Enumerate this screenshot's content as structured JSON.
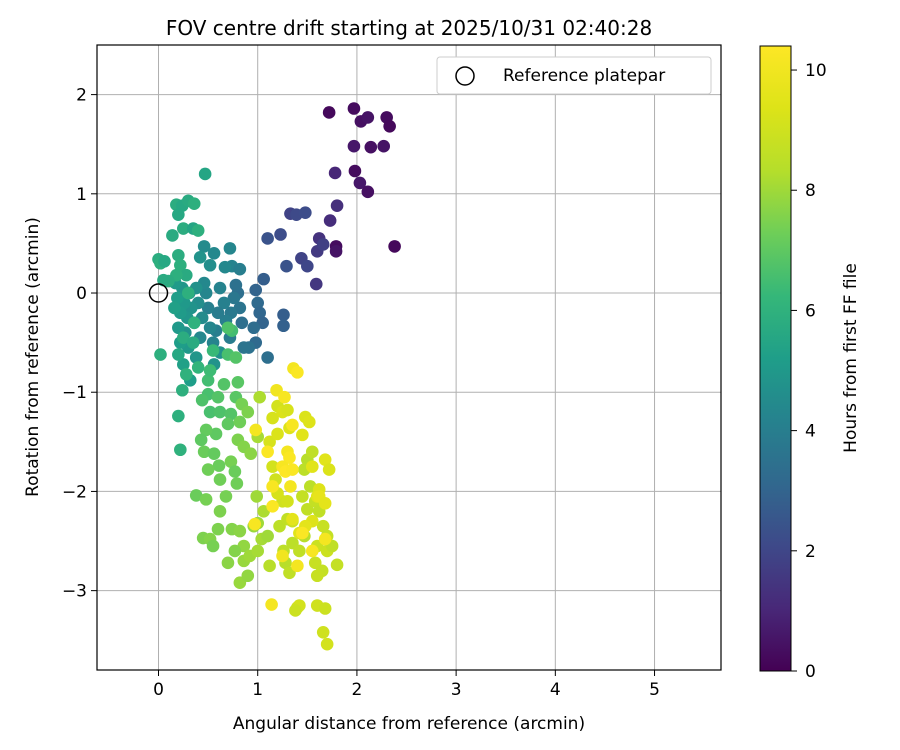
{
  "chart_data": {
    "type": "scatter",
    "title": "FOV centre drift starting at 2025/10/31 02:40:28",
    "xlabel": "Angular distance from reference (arcmin)",
    "ylabel": "Rotation from reference (arcmin)",
    "xlim": [
      -0.62,
      5.67
    ],
    "ylim": [
      -3.8,
      2.5
    ],
    "xticks": [
      0,
      1,
      2,
      3,
      4,
      5
    ],
    "yticks": [
      -3,
      -2,
      -1,
      0,
      1,
      2
    ],
    "grid": true,
    "legend": {
      "placement": "top-right",
      "entries": [
        "Reference platepar"
      ]
    },
    "reference_point": {
      "x": 0,
      "y": 0,
      "label": "Reference platepar"
    },
    "colorbar": {
      "label": "Hours from first FF file",
      "range": [
        0,
        10.4
      ],
      "ticks": [
        0,
        2,
        4,
        6,
        8,
        10
      ],
      "colormap": "viridis"
    },
    "points": [
      [
        1.72,
        1.82,
        0.2
      ],
      [
        1.97,
        1.86,
        0.3
      ],
      [
        2.04,
        1.73,
        0.4
      ],
      [
        2.11,
        1.77,
        0.5
      ],
      [
        2.3,
        1.77,
        0.3
      ],
      [
        2.33,
        1.68,
        0.2
      ],
      [
        1.97,
        1.48,
        0.6
      ],
      [
        2.14,
        1.47,
        0.4
      ],
      [
        2.27,
        1.48,
        0.5
      ],
      [
        1.98,
        1.23,
        0.3
      ],
      [
        2.03,
        1.11,
        0.6
      ],
      [
        2.11,
        1.02,
        0.4
      ],
      [
        2.38,
        0.47,
        0.2
      ],
      [
        1.79,
        0.47,
        0.3
      ],
      [
        1.79,
        0.42,
        0.5
      ],
      [
        1.78,
        1.21,
        1.0
      ],
      [
        1.73,
        0.73,
        1.2
      ],
      [
        1.8,
        0.88,
        1.3
      ],
      [
        1.62,
        0.55,
        1.4
      ],
      [
        1.59,
        0.09,
        1.5
      ],
      [
        1.6,
        0.42,
        1.6
      ],
      [
        1.66,
        0.49,
        1.8
      ],
      [
        1.44,
        0.35,
        1.9
      ],
      [
        1.5,
        0.27,
        2.0
      ],
      [
        1.33,
        0.8,
        1.9
      ],
      [
        1.39,
        0.79,
        2.1
      ],
      [
        1.48,
        0.81,
        2.2
      ],
      [
        1.23,
        0.59,
        2.2
      ],
      [
        1.1,
        0.55,
        2.4
      ],
      [
        1.29,
        0.27,
        2.4
      ],
      [
        1.06,
        0.14,
        2.8
      ],
      [
        0.98,
        0.03,
        3.0
      ],
      [
        1.0,
        -0.1,
        3.2
      ],
      [
        1.02,
        -0.2,
        3.1
      ],
      [
        1.05,
        -0.3,
        3.0
      ],
      [
        1.26,
        -0.22,
        2.8
      ],
      [
        1.26,
        -0.33,
        2.9
      ],
      [
        0.96,
        -0.35,
        3.3
      ],
      [
        0.98,
        -0.5,
        3.2
      ],
      [
        1.1,
        -0.65,
        3.4
      ],
      [
        0.91,
        -0.55,
        3.5
      ],
      [
        0.86,
        -0.55,
        3.6
      ],
      [
        0.84,
        -0.3,
        3.4
      ],
      [
        0.82,
        -0.15,
        3.6
      ],
      [
        0.8,
        0.0,
        3.4
      ],
      [
        0.78,
        0.08,
        3.5
      ],
      [
        0.76,
        -0.05,
        3.7
      ],
      [
        0.73,
        -0.2,
        3.8
      ],
      [
        0.72,
        -0.45,
        3.9
      ],
      [
        0.68,
        -0.28,
        4.0
      ],
      [
        0.66,
        -0.1,
        4.1
      ],
      [
        0.62,
        0.05,
        4.2
      ],
      [
        0.6,
        -0.2,
        3.9
      ],
      [
        0.58,
        -0.38,
        4.0
      ],
      [
        0.55,
        -0.5,
        4.2
      ],
      [
        0.52,
        -0.35,
        4.3
      ],
      [
        0.5,
        -0.15,
        4.1
      ],
      [
        0.48,
        0.0,
        4.3
      ],
      [
        0.46,
        0.1,
        4.4
      ],
      [
        0.44,
        -0.25,
        4.5
      ],
      [
        0.42,
        -0.45,
        4.4
      ],
      [
        0.4,
        -0.1,
        4.6
      ],
      [
        0.38,
        0.05,
        4.7
      ],
      [
        0.36,
        -0.3,
        4.5
      ],
      [
        0.33,
        -0.15,
        4.8
      ],
      [
        0.31,
        0.0,
        4.6
      ],
      [
        0.29,
        -0.25,
        4.9
      ],
      [
        0.27,
        -0.4,
        4.7
      ],
      [
        0.26,
        -0.1,
        5.0
      ],
      [
        0.24,
        0.05,
        4.9
      ],
      [
        0.22,
        -0.2,
        5.1
      ],
      [
        0.2,
        -0.35,
        5.0
      ],
      [
        0.19,
        -0.05,
        5.2
      ],
      [
        0.17,
        0.1,
        5.1
      ],
      [
        0.16,
        -0.15,
        5.3
      ],
      [
        0.74,
        0.27,
        4.2
      ],
      [
        0.82,
        0.24,
        4.0
      ],
      [
        0.72,
        0.45,
        4.3
      ],
      [
        0.67,
        0.26,
        4.4
      ],
      [
        0.56,
        0.4,
        4.4
      ],
      [
        0.52,
        0.28,
        4.6
      ],
      [
        0.46,
        0.47,
        4.5
      ],
      [
        0.42,
        0.36,
        4.8
      ],
      [
        0.62,
        -0.6,
        4.7
      ],
      [
        0.56,
        -0.72,
        4.8
      ],
      [
        0.38,
        -0.65,
        4.9
      ],
      [
        0.3,
        -0.55,
        5.0
      ],
      [
        0.22,
        -0.5,
        5.2
      ],
      [
        0.25,
        -0.72,
        5.3
      ],
      [
        0.32,
        -0.88,
        5.2
      ],
      [
        0.47,
        1.2,
        5.5
      ],
      [
        0.18,
        0.89,
        5.8
      ],
      [
        0.24,
        0.88,
        5.6
      ],
      [
        0.3,
        0.93,
        5.7
      ],
      [
        0.36,
        0.9,
        5.9
      ],
      [
        0.2,
        0.79,
        5.6
      ],
      [
        0.25,
        0.65,
        5.8
      ],
      [
        0.35,
        0.65,
        5.5
      ],
      [
        0.4,
        0.63,
        5.9
      ],
      [
        0.14,
        0.58,
        5.7
      ],
      [
        0.0,
        0.34,
        5.8
      ],
      [
        0.02,
        0.3,
        5.9
      ],
      [
        0.06,
        0.32,
        5.6
      ],
      [
        0.2,
        0.38,
        5.8
      ],
      [
        0.22,
        0.28,
        5.9
      ],
      [
        0.28,
        0.18,
        5.7
      ],
      [
        0.18,
        0.18,
        5.9
      ],
      [
        0.1,
        0.12,
        5.8
      ],
      [
        0.05,
        0.13,
        5.7
      ],
      [
        0.02,
        -0.62,
        5.9
      ],
      [
        0.2,
        -0.62,
        5.6
      ],
      [
        0.25,
        -0.45,
        5.8
      ],
      [
        0.35,
        -0.5,
        5.7
      ],
      [
        0.2,
        -1.24,
        5.9
      ],
      [
        0.22,
        -1.58,
        6.0
      ],
      [
        0.24,
        -0.98,
        5.9
      ],
      [
        0.28,
        -0.82,
        6.0
      ],
      [
        0.4,
        -0.75,
        6.1
      ],
      [
        0.36,
        -0.3,
        6.0
      ],
      [
        0.3,
        0.0,
        5.9
      ],
      [
        0.55,
        -0.58,
        6.3
      ],
      [
        0.5,
        -0.88,
        6.5
      ],
      [
        0.52,
        -0.78,
        6.4
      ],
      [
        0.5,
        -1.02,
        6.6
      ],
      [
        0.44,
        -1.08,
        6.7
      ],
      [
        0.52,
        -1.2,
        6.6
      ],
      [
        0.6,
        -1.05,
        6.8
      ],
      [
        0.62,
        -1.2,
        6.7
      ],
      [
        0.66,
        -0.92,
        6.8
      ],
      [
        0.7,
        -0.62,
        6.6
      ],
      [
        0.74,
        -0.38,
        6.5
      ],
      [
        0.7,
        -0.35,
        6.7
      ],
      [
        0.78,
        -0.65,
        6.8
      ],
      [
        0.8,
        -0.9,
        6.9
      ],
      [
        0.78,
        -1.05,
        6.9
      ],
      [
        0.73,
        -1.22,
        6.8
      ],
      [
        0.7,
        -1.32,
        7.0
      ],
      [
        0.58,
        -1.42,
        7.0
      ],
      [
        0.48,
        -1.38,
        7.1
      ],
      [
        0.43,
        -1.48,
        7.0
      ],
      [
        0.46,
        -1.6,
        7.2
      ],
      [
        0.56,
        -1.62,
        7.1
      ],
      [
        0.61,
        -1.74,
        7.2
      ],
      [
        0.5,
        -1.78,
        7.3
      ],
      [
        0.62,
        -1.88,
        7.3
      ],
      [
        0.73,
        -1.7,
        7.4
      ],
      [
        0.77,
        -1.8,
        7.2
      ],
      [
        0.79,
        -1.92,
        7.3
      ],
      [
        0.68,
        -2.05,
        7.4
      ],
      [
        0.62,
        -2.2,
        7.5
      ],
      [
        0.38,
        -2.04,
        7.2
      ],
      [
        0.48,
        -2.08,
        7.4
      ],
      [
        0.45,
        -2.47,
        7.5
      ],
      [
        0.52,
        -2.48,
        7.6
      ],
      [
        0.55,
        -2.55,
        7.4
      ],
      [
        0.6,
        -2.38,
        7.5
      ],
      [
        0.74,
        -2.38,
        7.6
      ],
      [
        0.82,
        -2.4,
        7.7
      ],
      [
        0.86,
        -2.55,
        7.8
      ],
      [
        0.77,
        -2.6,
        7.6
      ],
      [
        0.7,
        -2.72,
        7.7
      ],
      [
        0.82,
        -2.92,
        7.9
      ],
      [
        0.9,
        -2.85,
        7.8
      ],
      [
        0.86,
        -2.7,
        7.9
      ],
      [
        0.92,
        -2.65,
        8.0
      ],
      [
        0.8,
        -1.48,
        7.5
      ],
      [
        0.86,
        -1.55,
        7.6
      ],
      [
        0.93,
        -1.62,
        7.7
      ],
      [
        0.84,
        -1.12,
        7.4
      ],
      [
        0.9,
        -1.2,
        7.5
      ],
      [
        0.82,
        -1.3,
        7.3
      ],
      [
        0.96,
        -2.35,
        7.9
      ],
      [
        1.0,
        -2.32,
        8.0
      ],
      [
        1.04,
        -2.48,
        8.1
      ],
      [
        1.1,
        -2.45,
        8.0
      ],
      [
        1.0,
        -2.6,
        8.1
      ],
      [
        0.99,
        -2.05,
        8.0
      ],
      [
        1.06,
        -2.2,
        8.2
      ],
      [
        1.0,
        -1.45,
        8.1
      ],
      [
        1.02,
        -1.05,
        8.2
      ],
      [
        1.12,
        -2.75,
        8.4
      ],
      [
        1.26,
        -2.6,
        8.5
      ],
      [
        1.28,
        -2.72,
        8.4
      ],
      [
        1.32,
        -2.82,
        8.6
      ],
      [
        1.22,
        -2.35,
        8.5
      ],
      [
        1.3,
        -2.28,
        8.6
      ],
      [
        1.35,
        -2.52,
        8.5
      ],
      [
        1.42,
        -2.6,
        8.6
      ],
      [
        1.47,
        -2.45,
        8.4
      ],
      [
        1.5,
        -2.18,
        8.6
      ],
      [
        1.45,
        -2.05,
        8.7
      ],
      [
        1.53,
        -1.95,
        8.5
      ],
      [
        1.5,
        -1.68,
        8.4
      ],
      [
        1.55,
        -1.6,
        8.6
      ],
      [
        1.47,
        -1.78,
        8.5
      ],
      [
        1.58,
        -2.1,
        8.7
      ],
      [
        1.62,
        -2.2,
        8.6
      ],
      [
        1.66,
        -2.35,
        8.8
      ],
      [
        1.7,
        -2.45,
        8.7
      ],
      [
        1.6,
        -2.55,
        8.9
      ],
      [
        1.58,
        -2.72,
        8.8
      ],
      [
        1.65,
        -2.8,
        8.7
      ],
      [
        1.7,
        -2.6,
        8.9
      ],
      [
        1.75,
        -2.55,
        8.6
      ],
      [
        1.6,
        -2.85,
        8.8
      ],
      [
        1.4,
        -3.17,
        9.0
      ],
      [
        1.42,
        -3.15,
        9.1
      ],
      [
        1.38,
        -3.2,
        8.9
      ],
      [
        1.6,
        -3.15,
        9.0
      ],
      [
        1.68,
        -3.18,
        8.9
      ],
      [
        1.66,
        -3.42,
        9.0
      ],
      [
        1.7,
        -3.54,
        9.1
      ],
      [
        1.8,
        -2.74,
        8.7
      ],
      [
        1.35,
        -2.3,
        8.9
      ],
      [
        1.25,
        -2.1,
        9.0
      ],
      [
        1.3,
        -2.1,
        9.1
      ],
      [
        1.18,
        -1.88,
        9.0
      ],
      [
        1.2,
        -2.02,
        9.2
      ],
      [
        1.15,
        -1.75,
        9.1
      ],
      [
        1.12,
        -1.5,
        9.2
      ],
      [
        1.2,
        -1.42,
        9.3
      ],
      [
        1.15,
        -1.26,
        9.2
      ],
      [
        1.2,
        -1.14,
        9.1
      ],
      [
        1.25,
        -1.2,
        9.3
      ],
      [
        1.3,
        -1.18,
        9.2
      ],
      [
        1.32,
        -1.36,
        9.4
      ],
      [
        1.48,
        -1.25,
        9.3
      ],
      [
        1.52,
        -1.3,
        9.4
      ],
      [
        1.45,
        -1.43,
        9.5
      ],
      [
        1.55,
        -1.75,
        9.5
      ],
      [
        1.62,
        -1.98,
        9.4
      ],
      [
        1.68,
        -1.68,
        9.5
      ],
      [
        1.72,
        -1.78,
        9.3
      ],
      [
        1.6,
        -2.05,
        9.5
      ],
      [
        1.55,
        -2.3,
        9.4
      ],
      [
        1.48,
        -2.35,
        9.6
      ],
      [
        1.42,
        -2.42,
        9.5
      ],
      [
        1.35,
        -2.28,
        9.6
      ],
      [
        1.62,
        -2.05,
        9.7
      ],
      [
        1.68,
        -2.12,
        9.6
      ],
      [
        1.14,
        -3.14,
        10.1
      ],
      [
        1.19,
        -0.98,
        10.0
      ],
      [
        1.27,
        -1.05,
        10.2
      ],
      [
        1.36,
        -0.76,
        10.1
      ],
      [
        1.4,
        -0.8,
        10.3
      ],
      [
        1.35,
        -1.33,
        10.2
      ],
      [
        1.3,
        -1.6,
        10.1
      ],
      [
        1.32,
        -1.66,
        10.3
      ],
      [
        1.25,
        -1.75,
        10.2
      ],
      [
        1.28,
        -1.8,
        10.4
      ],
      [
        1.35,
        -1.78,
        10.3
      ],
      [
        1.33,
        -1.95,
        10.1
      ],
      [
        1.15,
        -1.95,
        10.2
      ],
      [
        1.1,
        -1.6,
        10.3
      ],
      [
        0.98,
        -1.38,
        10.1
      ],
      [
        1.15,
        -2.15,
        10.3
      ],
      [
        1.25,
        -2.65,
        10.0
      ],
      [
        0.97,
        -2.33,
        10.2
      ],
      [
        1.68,
        -2.48,
        10.1
      ],
      [
        1.45,
        -2.42,
        10.3
      ],
      [
        1.55,
        -2.6,
        10.2
      ],
      [
        1.4,
        -2.75,
        10.1
      ]
    ]
  }
}
